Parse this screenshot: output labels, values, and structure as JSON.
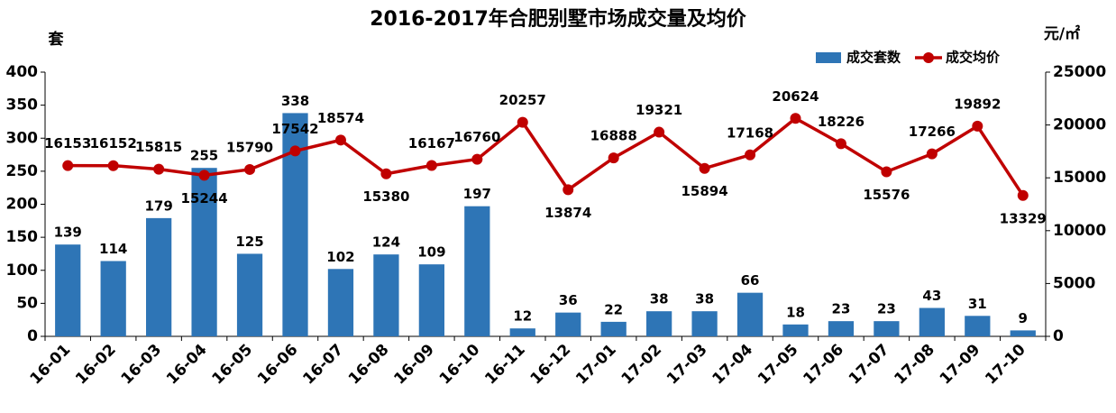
{
  "chart_data": {
    "type": "bar",
    "title": "2016-2017年合肥别墅市场成交量及均价",
    "y_label": "套",
    "y2_label": "元/㎡",
    "categories": [
      "16-01",
      "16-02",
      "16-03",
      "16-04",
      "16-05",
      "16-06",
      "16-07",
      "16-08",
      "16-09",
      "16-10",
      "16-11",
      "16-12",
      "17-01",
      "17-02",
      "17-03",
      "17-04",
      "17-05",
      "17-06",
      "17-07",
      "17-08",
      "17-09",
      "17-10"
    ],
    "series": [
      {
        "name": "成交套数",
        "type": "bar",
        "color": "#2e75b6",
        "values": [
          139,
          114,
          179,
          255,
          125,
          338,
          102,
          124,
          109,
          197,
          12,
          36,
          22,
          38,
          38,
          66,
          18,
          23,
          23,
          43,
          31,
          9
        ]
      },
      {
        "name": "成交均价",
        "type": "line",
        "axis": "y2",
        "color": "#c00000",
        "values": [
          16153,
          16152,
          15815,
          15244,
          15790,
          17542,
          18574,
          15380,
          16167,
          16760,
          20257,
          13874,
          16888,
          19321,
          15894,
          17168,
          20624,
          18226,
          15576,
          17266,
          19892,
          13329
        ]
      }
    ],
    "ylim": [
      0,
      400
    ],
    "yticks": [
      0,
      50,
      100,
      150,
      200,
      250,
      300,
      350,
      400
    ],
    "y2lim": [
      0,
      25000
    ],
    "y2ticks": [
      0,
      5000,
      10000,
      15000,
      20000,
      25000
    ],
    "legend": "top-right",
    "grid": false
  }
}
